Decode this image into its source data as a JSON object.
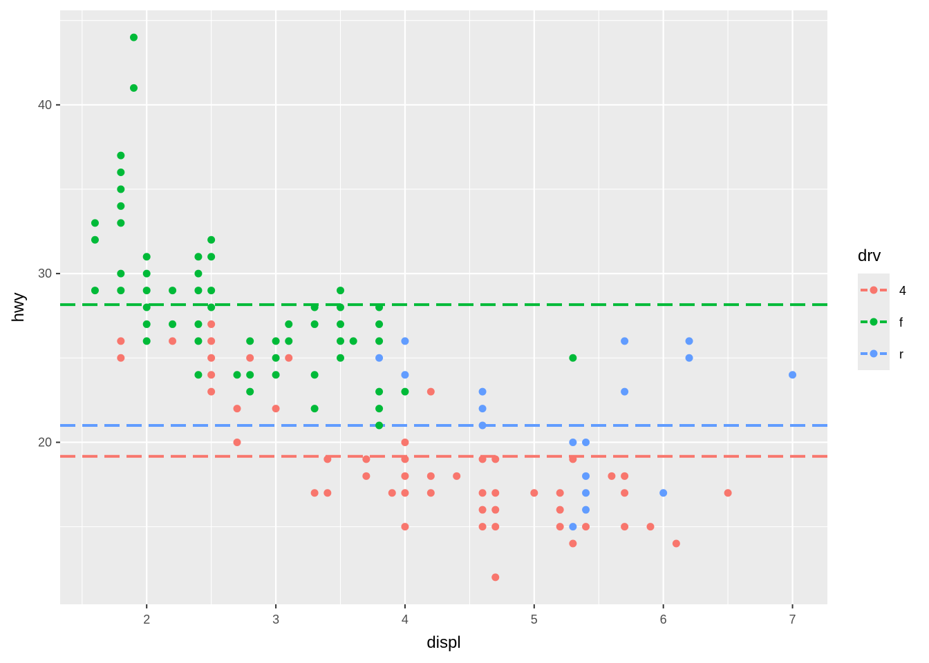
{
  "chart_data": {
    "type": "scatter",
    "title": "",
    "xlabel": "displ",
    "ylabel": "hwy",
    "xlim": [
      1.33,
      7.27
    ],
    "ylim": [
      10.4,
      45.6
    ],
    "grid": true,
    "x_ticks": [
      2,
      3,
      4,
      5,
      6,
      7
    ],
    "y_ticks": [
      20,
      30,
      40
    ],
    "legend": {
      "title": "drv",
      "position": "right",
      "entries": [
        "4",
        "f",
        "r"
      ]
    },
    "colors": {
      "4": "#F8766D",
      "f": "#00BA38",
      "r": "#619CFF"
    },
    "hlines": [
      {
        "group": "4",
        "y": 19.17,
        "style": "dashed"
      },
      {
        "group": "f",
        "y": 28.16,
        "style": "dashed"
      },
      {
        "group": "r",
        "y": 21.0,
        "style": "dashed"
      }
    ],
    "series": [
      {
        "name": "4",
        "points": [
          [
            1.8,
            26
          ],
          [
            1.8,
            25
          ],
          [
            2.2,
            26
          ],
          [
            2.5,
            27
          ],
          [
            2.5,
            26
          ],
          [
            2.5,
            25
          ],
          [
            2.5,
            24
          ],
          [
            2.5,
            23
          ],
          [
            2.7,
            22
          ],
          [
            2.7,
            20
          ],
          [
            2.8,
            25
          ],
          [
            3.0,
            22
          ],
          [
            3.1,
            25
          ],
          [
            3.3,
            17
          ],
          [
            3.4,
            19
          ],
          [
            3.4,
            17
          ],
          [
            3.7,
            19
          ],
          [
            3.7,
            18
          ],
          [
            3.9,
            17
          ],
          [
            4.0,
            20
          ],
          [
            4.0,
            19
          ],
          [
            4.0,
            18
          ],
          [
            4.0,
            17
          ],
          [
            4.0,
            15
          ],
          [
            4.2,
            23
          ],
          [
            4.2,
            18
          ],
          [
            4.2,
            17
          ],
          [
            4.4,
            18
          ],
          [
            4.6,
            19
          ],
          [
            4.6,
            17
          ],
          [
            4.6,
            16
          ],
          [
            4.6,
            15
          ],
          [
            4.7,
            19
          ],
          [
            4.7,
            17
          ],
          [
            4.7,
            16
          ],
          [
            4.7,
            15
          ],
          [
            4.7,
            12
          ],
          [
            5.0,
            17
          ],
          [
            5.2,
            17
          ],
          [
            5.2,
            16
          ],
          [
            5.2,
            15
          ],
          [
            5.3,
            19
          ],
          [
            5.3,
            14
          ],
          [
            5.4,
            15
          ],
          [
            5.6,
            18
          ],
          [
            5.7,
            18
          ],
          [
            5.7,
            17
          ],
          [
            5.7,
            15
          ],
          [
            5.9,
            15
          ],
          [
            6.1,
            14
          ],
          [
            6.5,
            17
          ]
        ]
      },
      {
        "name": "f",
        "points": [
          [
            1.6,
            33
          ],
          [
            1.6,
            32
          ],
          [
            1.6,
            29
          ],
          [
            1.8,
            37
          ],
          [
            1.8,
            36
          ],
          [
            1.8,
            35
          ],
          [
            1.8,
            34
          ],
          [
            1.8,
            33
          ],
          [
            1.8,
            30
          ],
          [
            1.8,
            29
          ],
          [
            1.9,
            44
          ],
          [
            1.9,
            41
          ],
          [
            2.0,
            31
          ],
          [
            2.0,
            30
          ],
          [
            2.0,
            29
          ],
          [
            2.0,
            28
          ],
          [
            2.0,
            27
          ],
          [
            2.0,
            26
          ],
          [
            2.2,
            29
          ],
          [
            2.2,
            27
          ],
          [
            2.4,
            31
          ],
          [
            2.4,
            30
          ],
          [
            2.4,
            29
          ],
          [
            2.4,
            27
          ],
          [
            2.4,
            26
          ],
          [
            2.4,
            24
          ],
          [
            2.5,
            32
          ],
          [
            2.5,
            31
          ],
          [
            2.5,
            29
          ],
          [
            2.5,
            28
          ],
          [
            2.7,
            24
          ],
          [
            2.8,
            26
          ],
          [
            2.8,
            24
          ],
          [
            2.8,
            23
          ],
          [
            3.0,
            26
          ],
          [
            3.0,
            25
          ],
          [
            3.0,
            24
          ],
          [
            3.1,
            27
          ],
          [
            3.1,
            26
          ],
          [
            3.3,
            28
          ],
          [
            3.3,
            27
          ],
          [
            3.3,
            24
          ],
          [
            3.3,
            22
          ],
          [
            3.5,
            29
          ],
          [
            3.5,
            28
          ],
          [
            3.5,
            27
          ],
          [
            3.5,
            26
          ],
          [
            3.5,
            25
          ],
          [
            3.6,
            26
          ],
          [
            3.8,
            28
          ],
          [
            3.8,
            27
          ],
          [
            3.8,
            26
          ],
          [
            3.8,
            23
          ],
          [
            3.8,
            22
          ],
          [
            3.8,
            21
          ],
          [
            4.0,
            23
          ],
          [
            5.3,
            25
          ]
        ]
      },
      {
        "name": "r",
        "points": [
          [
            3.8,
            25
          ],
          [
            4.0,
            26
          ],
          [
            4.0,
            24
          ],
          [
            4.6,
            23
          ],
          [
            4.6,
            22
          ],
          [
            4.6,
            21
          ],
          [
            5.3,
            20
          ],
          [
            5.3,
            15
          ],
          [
            5.4,
            20
          ],
          [
            5.4,
            18
          ],
          [
            5.4,
            17
          ],
          [
            5.4,
            16
          ],
          [
            5.7,
            26
          ],
          [
            5.7,
            23
          ],
          [
            6.0,
            17
          ],
          [
            6.2,
            26
          ],
          [
            6.2,
            25
          ],
          [
            7.0,
            24
          ]
        ]
      }
    ]
  }
}
